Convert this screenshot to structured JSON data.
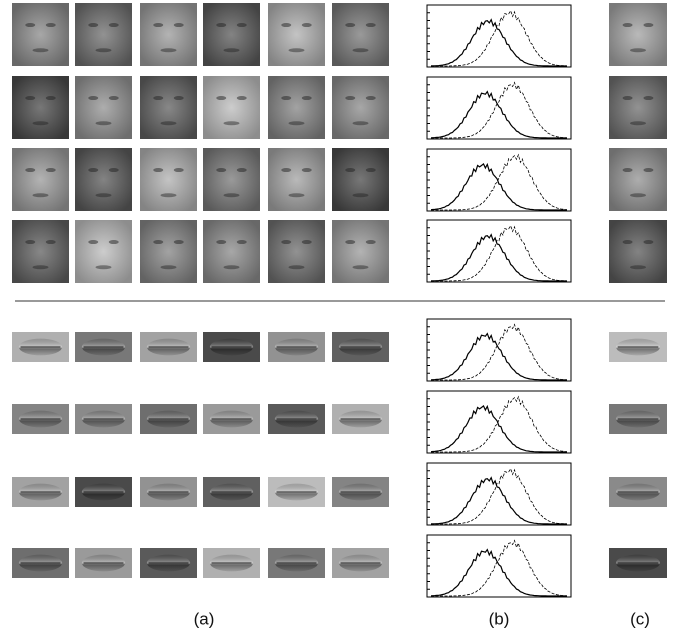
{
  "figure": {
    "labels": [
      "(a)",
      "(b)",
      "(c)"
    ]
  }
}
